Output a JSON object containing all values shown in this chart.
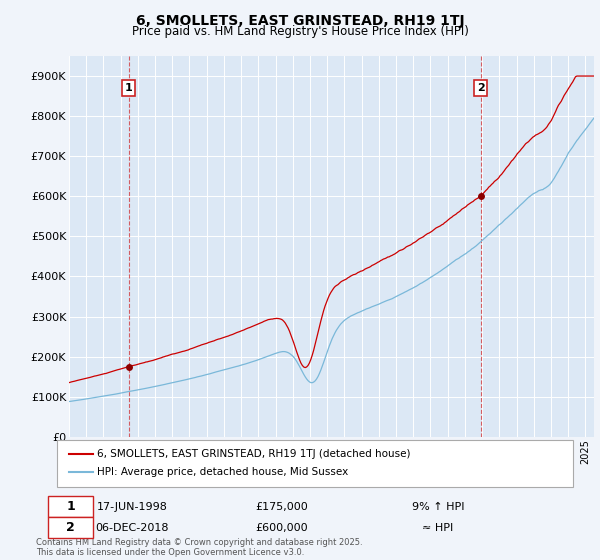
{
  "title": "6, SMOLLETS, EAST GRINSTEAD, RH19 1TJ",
  "subtitle": "Price paid vs. HM Land Registry's House Price Index (HPI)",
  "legend_line1": "6, SMOLLETS, EAST GRINSTEAD, RH19 1TJ (detached house)",
  "legend_line2": "HPI: Average price, detached house, Mid Sussex",
  "sale1_label": "1",
  "sale1_date": "17-JUN-1998",
  "sale1_price": "£175,000",
  "sale1_hpi": "9% ↑ HPI",
  "sale2_label": "2",
  "sale2_date": "06-DEC-2018",
  "sale2_price": "£600,000",
  "sale2_hpi": "≈ HPI",
  "footnote": "Contains HM Land Registry data © Crown copyright and database right 2025.\nThis data is licensed under the Open Government Licence v3.0.",
  "hpi_color": "#7ab8d9",
  "price_color": "#cc0000",
  "marker_color": "#8b0000",
  "bg_color": "#f0f4fa",
  "plot_bg": "#dce8f5",
  "grid_color": "#ffffff",
  "ylim": [
    0,
    950000
  ],
  "yticks": [
    0,
    100000,
    200000,
    300000,
    400000,
    500000,
    600000,
    700000,
    800000,
    900000
  ],
  "sale1_year": 1998.46,
  "sale1_value": 175000,
  "sale2_year": 2018.92,
  "sale2_value": 600000,
  "xmin": 1995,
  "xmax": 2025.5
}
